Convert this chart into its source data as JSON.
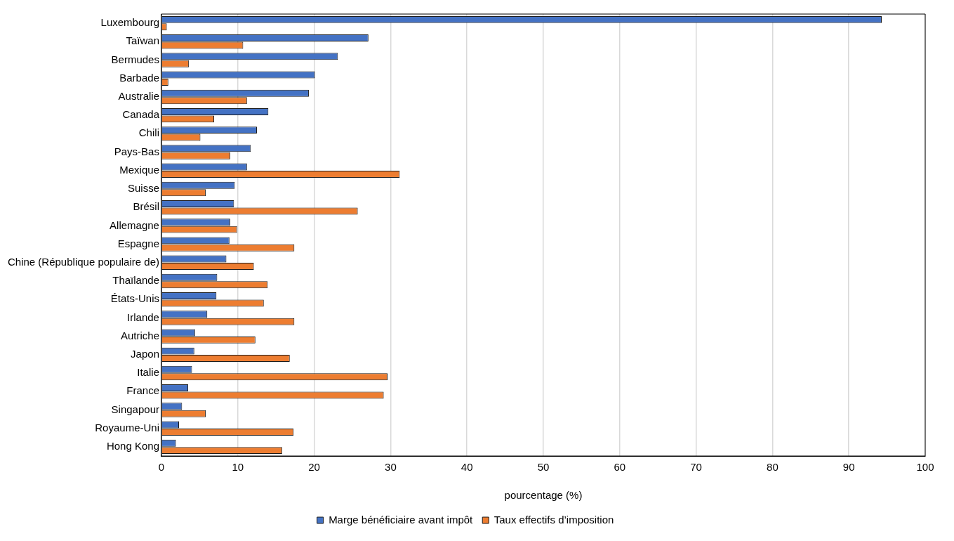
{
  "chart_data": {
    "type": "bar",
    "orientation": "horizontal",
    "xlabel": "pourcentage (%)",
    "categories": [
      "Luxembourg",
      "Taïwan",
      "Bermudes",
      "Barbade",
      "Australie",
      "Canada",
      "Chili",
      "Pays-Bas",
      "Mexique",
      "Suisse",
      "Brésil",
      "Allemagne",
      "Espagne",
      "Chine (République populaire de)",
      "Thaïlande",
      "États-Unis",
      "Irlande",
      "Autriche",
      "Japon",
      "Italie",
      "France",
      "Singapour",
      "Royaume-Uni",
      "Hong Kong"
    ],
    "series": [
      {
        "name": "Marge bénéficiaire avant impôt",
        "color": "#4472c4",
        "values": [
          94.3,
          27.1,
          23.1,
          20.1,
          19.3,
          14.0,
          12.5,
          11.7,
          11.2,
          9.6,
          9.5,
          9.0,
          8.9,
          8.5,
          7.3,
          7.2,
          6.0,
          4.4,
          4.3,
          4.0,
          3.5,
          2.7,
          2.3,
          1.9
        ]
      },
      {
        "name": "Taux effectifs d’imposition",
        "color": "#ed7d31",
        "values": [
          0.7,
          10.7,
          3.6,
          0.9,
          11.2,
          6.9,
          5.1,
          9.0,
          31.2,
          5.8,
          25.7,
          9.9,
          17.4,
          12.1,
          13.9,
          13.4,
          17.4,
          12.3,
          16.8,
          29.6,
          29.1,
          5.8,
          17.3,
          15.8
        ]
      }
    ],
    "xlim": [
      0,
      100
    ],
    "xticks": [
      0,
      10,
      20,
      30,
      40,
      50,
      60,
      70,
      80,
      90,
      100
    ],
    "grid": "x",
    "legend": "bottom"
  }
}
